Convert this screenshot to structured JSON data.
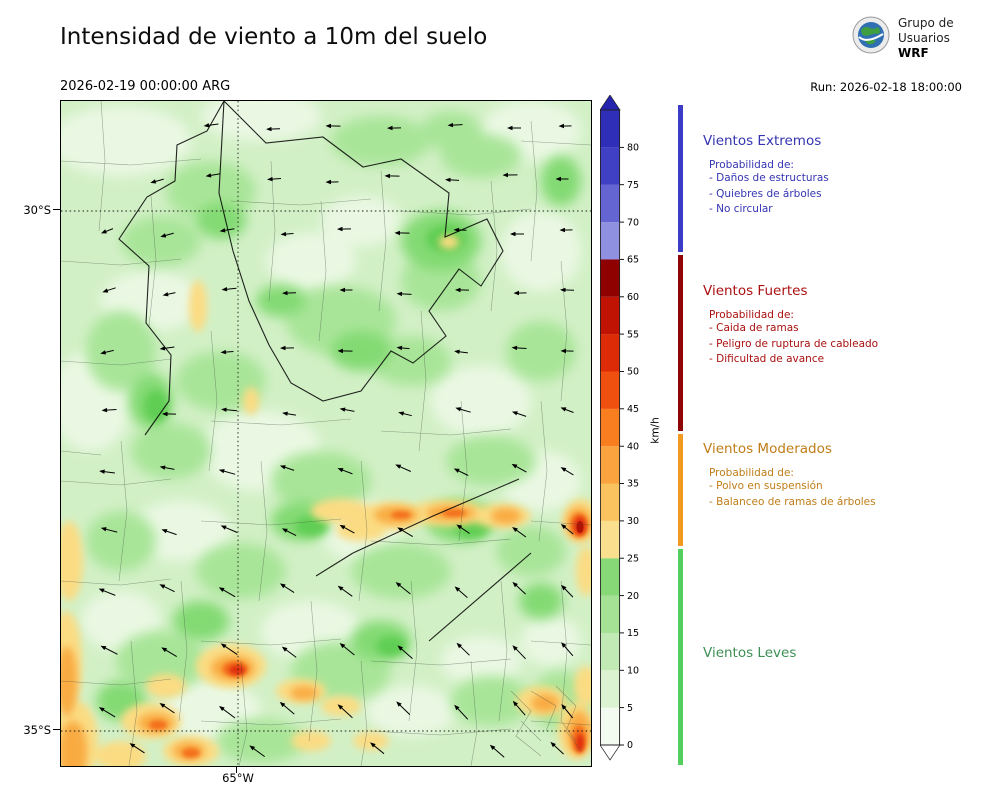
{
  "header": {
    "title": "Intensidad de viento a 10m del suelo",
    "valid_time": "2026-02-19 00:00:00 ARG",
    "run_label": "Run: 2026-02-18 18:00:00",
    "logo_text": [
      "Grupo de",
      "Usuarios",
      "WRF"
    ]
  },
  "map": {
    "lat_labels": [
      "30°S",
      "35°S"
    ],
    "lon_labels": [
      "65°W"
    ],
    "arrows": [
      [
        150,
        24,
        188,
        15
      ],
      [
        212,
        28,
        182,
        14
      ],
      [
        272,
        25,
        179,
        15
      ],
      [
        333,
        27,
        181,
        14
      ],
      [
        394,
        24,
        183,
        15
      ],
      [
        453,
        27,
        180,
        14
      ],
      [
        504,
        25,
        181,
        13
      ],
      [
        96,
        80,
        196,
        14
      ],
      [
        152,
        74,
        190,
        15
      ],
      [
        213,
        78,
        184,
        14
      ],
      [
        271,
        81,
        181,
        13
      ],
      [
        331,
        75,
        179,
        15
      ],
      [
        391,
        79,
        177,
        14
      ],
      [
        449,
        74,
        181,
        15
      ],
      [
        501,
        78,
        180,
        13
      ],
      [
        46,
        130,
        202,
        13
      ],
      [
        106,
        134,
        196,
        14
      ],
      [
        166,
        129,
        189,
        15
      ],
      [
        226,
        133,
        184,
        13
      ],
      [
        283,
        128,
        181,
        14
      ],
      [
        341,
        132,
        179,
        15
      ],
      [
        399,
        129,
        177,
        13
      ],
      [
        456,
        133,
        180,
        14
      ],
      [
        505,
        129,
        181,
        13
      ],
      [
        48,
        189,
        198,
        14
      ],
      [
        108,
        193,
        192,
        13
      ],
      [
        168,
        188,
        186,
        15
      ],
      [
        228,
        192,
        182,
        14
      ],
      [
        285,
        189,
        180,
        13
      ],
      [
        343,
        193,
        177,
        15
      ],
      [
        401,
        189,
        179,
        14
      ],
      [
        459,
        192,
        181,
        13
      ],
      [
        506,
        189,
        178,
        14
      ],
      [
        46,
        251,
        193,
        14
      ],
      [
        106,
        247,
        188,
        15
      ],
      [
        166,
        251,
        184,
        13
      ],
      [
        226,
        247,
        181,
        14
      ],
      [
        284,
        250,
        179,
        15
      ],
      [
        342,
        247,
        175,
        13
      ],
      [
        400,
        251,
        173,
        14
      ],
      [
        458,
        247,
        176,
        15
      ],
      [
        506,
        250,
        179,
        13
      ],
      [
        48,
        309,
        184,
        15
      ],
      [
        108,
        313,
        179,
        14
      ],
      [
        168,
        309,
        174,
        16
      ],
      [
        228,
        313,
        171,
        14
      ],
      [
        286,
        309,
        169,
        15
      ],
      [
        344,
        313,
        166,
        14
      ],
      [
        402,
        309,
        164,
        16
      ],
      [
        458,
        313,
        161,
        15
      ],
      [
        506,
        309,
        159,
        14
      ],
      [
        46,
        371,
        173,
        16
      ],
      [
        106,
        367,
        169,
        15
      ],
      [
        166,
        371,
        164,
        17
      ],
      [
        226,
        367,
        161,
        15
      ],
      [
        284,
        370,
        159,
        16
      ],
      [
        342,
        367,
        156,
        17
      ],
      [
        400,
        371,
        154,
        16
      ],
      [
        458,
        367,
        151,
        17
      ],
      [
        506,
        370,
        149,
        15
      ],
      [
        48,
        429,
        166,
        17
      ],
      [
        108,
        431,
        161,
        16
      ],
      [
        168,
        428,
        157,
        18
      ],
      [
        228,
        431,
        153,
        16
      ],
      [
        286,
        428,
        151,
        17
      ],
      [
        344,
        431,
        149,
        18
      ],
      [
        402,
        428,
        146,
        16
      ],
      [
        458,
        431,
        144,
        17
      ],
      [
        506,
        428,
        141,
        16
      ],
      [
        46,
        491,
        158,
        18
      ],
      [
        106,
        487,
        154,
        17
      ],
      [
        166,
        491,
        150,
        19
      ],
      [
        226,
        487,
        147,
        17
      ],
      [
        284,
        490,
        144,
        18
      ],
      [
        342,
        487,
        141,
        19
      ],
      [
        400,
        491,
        139,
        17
      ],
      [
        458,
        487,
        137,
        18
      ],
      [
        506,
        490,
        134,
        17
      ],
      [
        48,
        549,
        153,
        19
      ],
      [
        108,
        551,
        149,
        18
      ],
      [
        168,
        548,
        146,
        20
      ],
      [
        228,
        551,
        143,
        18
      ],
      [
        286,
        548,
        141,
        19
      ],
      [
        344,
        551,
        139,
        20
      ],
      [
        402,
        548,
        136,
        18
      ],
      [
        458,
        551,
        134,
        19
      ],
      [
        506,
        548,
        131,
        18
      ],
      [
        46,
        611,
        149,
        19
      ],
      [
        106,
        607,
        146,
        18
      ],
      [
        166,
        611,
        143,
        20
      ],
      [
        226,
        607,
        140,
        19
      ],
      [
        284,
        610,
        138,
        20
      ],
      [
        342,
        607,
        136,
        19
      ],
      [
        400,
        611,
        133,
        20
      ],
      [
        458,
        607,
        131,
        19
      ],
      [
        506,
        610,
        129,
        18
      ],
      [
        76,
        647,
        147,
        18
      ],
      [
        196,
        650,
        144,
        19
      ],
      [
        316,
        647,
        141,
        18
      ],
      [
        436,
        650,
        139,
        19
      ],
      [
        496,
        647,
        137,
        18
      ]
    ]
  },
  "colorbar": {
    "unit": "km/h",
    "min": 0,
    "max": 85,
    "ticks": [
      0,
      5,
      10,
      15,
      20,
      25,
      30,
      35,
      40,
      45,
      50,
      55,
      60,
      65,
      70,
      75,
      80
    ],
    "segments": [
      {
        "from": 0,
        "to": 5,
        "color": "#f3faef"
      },
      {
        "from": 5,
        "to": 10,
        "color": "#dcf3d2"
      },
      {
        "from": 10,
        "to": 15,
        "color": "#c2eab4"
      },
      {
        "from": 15,
        "to": 20,
        "color": "#a5e295"
      },
      {
        "from": 20,
        "to": 25,
        "color": "#87d978"
      },
      {
        "from": 25,
        "to": 30,
        "color": "#fae08e"
      },
      {
        "from": 30,
        "to": 35,
        "color": "#fbc35f"
      },
      {
        "from": 35,
        "to": 40,
        "color": "#fba33e"
      },
      {
        "from": 40,
        "to": 45,
        "color": "#f87e20"
      },
      {
        "from": 45,
        "to": 50,
        "color": "#f0500f"
      },
      {
        "from": 50,
        "to": 55,
        "color": "#dd2b07"
      },
      {
        "from": 55,
        "to": 60,
        "color": "#c11304"
      },
      {
        "from": 60,
        "to": 65,
        "color": "#8f0101"
      },
      {
        "from": 65,
        "to": 70,
        "color": "#9090e0"
      },
      {
        "from": 70,
        "to": 75,
        "color": "#6464d2"
      },
      {
        "from": 75,
        "to": 80,
        "color": "#4040c4"
      },
      {
        "from": 80,
        "to": 85,
        "color": "#2e2eb8"
      }
    ],
    "arrow_over_color": "#2424ae",
    "arrow_under_color": "#ffffff"
  },
  "legend": {
    "sections": [
      {
        "title": "Vientos Extremos",
        "color": "#3434b2",
        "bar_color": "#3b3bc8",
        "subtitle": "Probabilidad de:",
        "items": [
          "- Daños de estructuras",
          "- Quiebres de árboles",
          "- No circular"
        ]
      },
      {
        "title": "Vientos Fuertes",
        "color": "#aa1010",
        "bar_color": "#8f0505",
        "subtitle": "Probabilidad de:",
        "items": [
          "- Caida de ramas",
          "- Peligro de ruptura de cableado",
          "- Dificultad de avance"
        ]
      },
      {
        "title": "Vientos Moderados",
        "color": "#c07d18",
        "bar_color": "#f29a20",
        "subtitle": "Probabilidad de:",
        "items": [
          "- Polvo en suspensión",
          "- Balanceo de ramas de árboles"
        ]
      },
      {
        "title": "Vientos Leves",
        "color": "#3f8f55",
        "bar_color": "#53cf5e",
        "subtitle": "",
        "items": []
      }
    ]
  }
}
